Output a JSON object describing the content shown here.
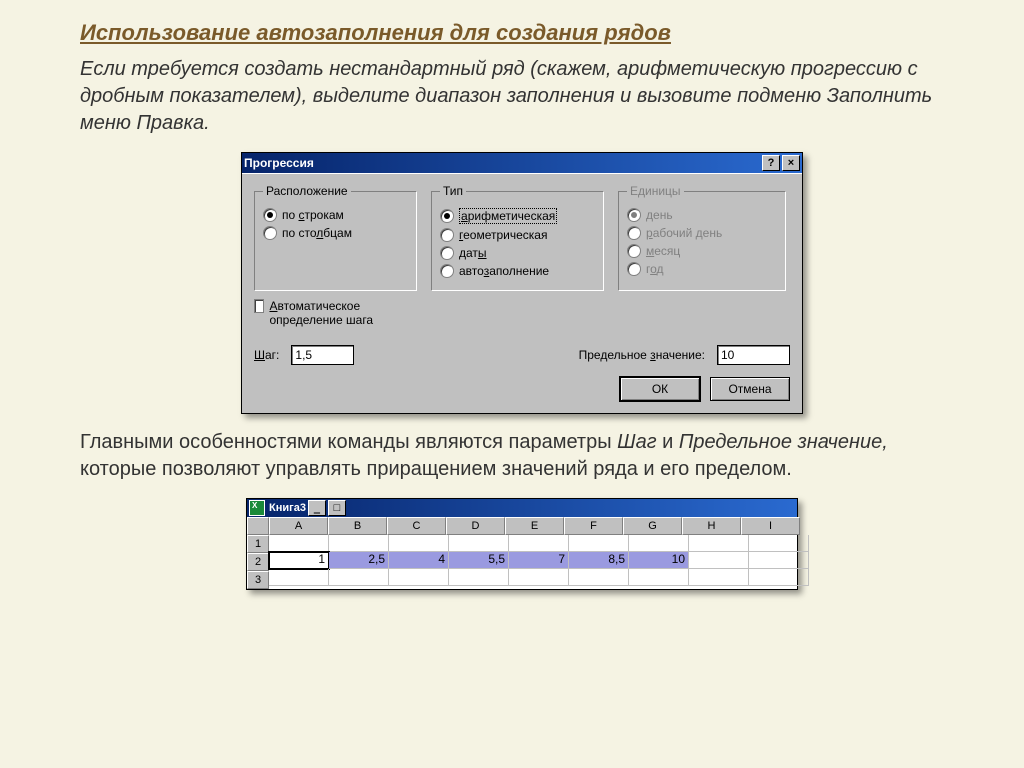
{
  "page": {
    "title": "Использование автозаполнения для создания рядов",
    "intro_p1": "Если требуется создать нестандартный ряд (скажем, арифметическую прогрессию с дробным показателем), выделите диапазон заполнения и вызовите подменю ",
    "intro_menu1": "Заполнить",
    "intro_mid": " меню ",
    "intro_menu2": "Правка.",
    "desc_a": "Главными особенностями команды являются параметры ",
    "desc_em1": "Шаг",
    "desc_b": " и ",
    "desc_em2": "Предельное значение,",
    "desc_c": " которые позволяют управлять приращением значений ряда и его пределом."
  },
  "dialog": {
    "title": "Прогрессия",
    "help_btn": "?",
    "close_btn": "×",
    "groups": {
      "location": {
        "legend": "Расположение",
        "opts": [
          {
            "label": "по строкам",
            "ul": "с",
            "pre": "по ",
            "post": "трокам",
            "checked": true
          },
          {
            "label": "по столбцам",
            "ul": "л",
            "pre": "по сто",
            "post": "бцам",
            "checked": false
          }
        ]
      },
      "type": {
        "legend": "Тип",
        "opts": [
          {
            "label": "арифметическая",
            "ul": "а",
            "pre": "",
            "post": "рифметическая",
            "checked": true,
            "focus": true
          },
          {
            "label": "геометрическая",
            "ul": "г",
            "pre": "",
            "post": "еометрическая",
            "checked": false
          },
          {
            "label": "даты",
            "ul": "ы",
            "pre": "дат",
            "post": "",
            "checked": false
          },
          {
            "label": "автозаполнение",
            "ul": "з",
            "pre": "авто",
            "post": "аполнение",
            "checked": false
          }
        ]
      },
      "units": {
        "legend": "Единицы",
        "disabled": true,
        "opts": [
          {
            "label": "день",
            "ul": "д",
            "pre": "",
            "post": "ень",
            "checked": true
          },
          {
            "label": "рабочий день",
            "ul": "р",
            "pre": "",
            "post": "абочий день",
            "checked": false
          },
          {
            "label": "месяц",
            "ul": "м",
            "pre": "",
            "post": "есяц",
            "checked": false
          },
          {
            "label": "год",
            "ul": "о",
            "pre": "г",
            "post": "д",
            "checked": false
          }
        ]
      }
    },
    "auto_step_pre": "",
    "auto_step_ul": "А",
    "auto_step_post": "втоматическое определение шага",
    "step_label_ul": "Ш",
    "step_label_post": "аг:",
    "step_value": "1,5",
    "limit_label_pre": "Предельное ",
    "limit_label_ul": "з",
    "limit_label_post": "начение:",
    "limit_value": "10",
    "ok": "ОК",
    "cancel": "Отмена"
  },
  "workbook": {
    "title": "Книга3",
    "cols": [
      "A",
      "B",
      "C",
      "D",
      "E",
      "F",
      "G",
      "H",
      "I"
    ],
    "rows": [
      "1",
      "2",
      "3"
    ],
    "data_row": [
      "1",
      "2,5",
      "4",
      "5,5",
      "7",
      "8,5",
      "10",
      "",
      ""
    ],
    "active_col": 0,
    "sel_end": 6
  }
}
